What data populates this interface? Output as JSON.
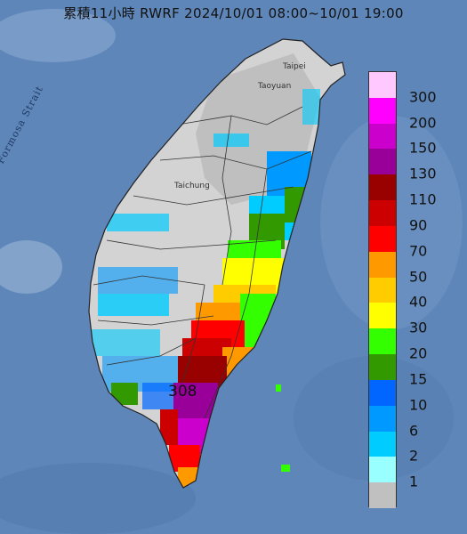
{
  "title": "累積11小時 RWRF 2024/10/01 08:00~10/01 19:00",
  "max_value_label": "308",
  "strait_label": "Formosa Strait",
  "cities": {
    "taipei": "Taipei",
    "taoyuan": "Taoyuan",
    "taichung": "Taichung"
  },
  "legend": {
    "labels": [
      "300",
      "200",
      "150",
      "130",
      "110",
      "90",
      "70",
      "50",
      "40",
      "30",
      "20",
      "15",
      "10",
      "6",
      "2",
      "1"
    ],
    "colors": [
      "#ffc8ff",
      "#ff00ff",
      "#cc00cc",
      "#990099",
      "#990000",
      "#cc0000",
      "#ff0000",
      "#ff9900",
      "#ffcc00",
      "#ffff00",
      "#33ff00",
      "#339900",
      "#0066ff",
      "#0099ff",
      "#00ccff",
      "#99ffff",
      "#c0c0c0"
    ]
  },
  "colors": {
    "sea": "#5e86b8",
    "land": "#d3d3d3",
    "border": "#333333"
  }
}
